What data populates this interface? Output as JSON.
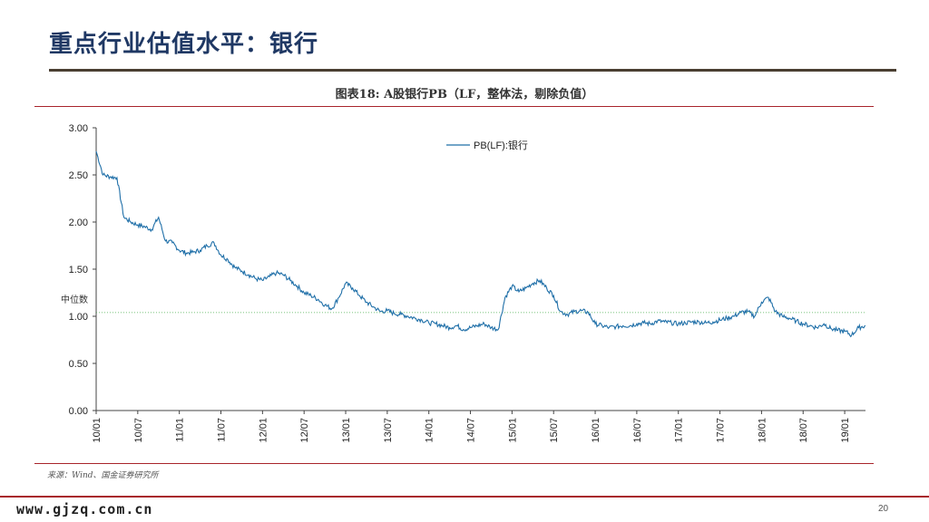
{
  "slide": {
    "title": "重点行业估值水平：银行",
    "caption": "图表18:    A股银行PB（LF，整体法，剔除负值）",
    "source": "来源：Wind、国金证券研究所",
    "footer_site": "www.gjzq.com.cn",
    "page_number": "20"
  },
  "colors": {
    "series": "#1f6fa8",
    "reference": "#4caf50",
    "rule": "#a8242b"
  },
  "chart_data": {
    "type": "line",
    "title": "",
    "xlabel": "",
    "ylabel": "",
    "ylim": [
      0,
      3.0
    ],
    "yticks": [
      "3.00",
      "2.50",
      "2.00",
      "1.50",
      "1.00",
      "0.50",
      "0.00"
    ],
    "ytick_values": [
      3.0,
      2.5,
      2.0,
      1.5,
      1.0,
      0.5,
      0.0
    ],
    "x_tick_labels": [
      "10/01",
      "10/07",
      "11/01",
      "11/07",
      "12/01",
      "12/07",
      "13/01",
      "13/07",
      "14/01",
      "14/07",
      "15/01",
      "15/07",
      "16/01",
      "16/07",
      "17/01",
      "17/07",
      "18/01",
      "18/07",
      "19/01"
    ],
    "x_range": [
      "2010-01",
      "2019-04"
    ],
    "grid": false,
    "legend_position": "top-center",
    "reference_line": {
      "label": "中位数",
      "value": 1.04
    },
    "series": [
      {
        "name": "PB(LF):银行",
        "x": [
          "2010-01",
          "2010-02",
          "2010-03",
          "2010-04",
          "2010-05",
          "2010-06",
          "2010-07",
          "2010-08",
          "2010-09",
          "2010-10",
          "2010-11",
          "2010-12",
          "2011-01",
          "2011-02",
          "2011-03",
          "2011-04",
          "2011-05",
          "2011-06",
          "2011-07",
          "2011-08",
          "2011-09",
          "2011-10",
          "2011-11",
          "2011-12",
          "2012-01",
          "2012-02",
          "2012-03",
          "2012-04",
          "2012-05",
          "2012-06",
          "2012-07",
          "2012-08",
          "2012-09",
          "2012-10",
          "2012-11",
          "2012-12",
          "2013-01",
          "2013-02",
          "2013-03",
          "2013-04",
          "2013-05",
          "2013-06",
          "2013-07",
          "2013-08",
          "2013-09",
          "2013-10",
          "2013-11",
          "2013-12",
          "2014-01",
          "2014-02",
          "2014-03",
          "2014-04",
          "2014-05",
          "2014-06",
          "2014-07",
          "2014-08",
          "2014-09",
          "2014-10",
          "2014-11",
          "2014-12",
          "2015-01",
          "2015-02",
          "2015-03",
          "2015-04",
          "2015-05",
          "2015-06",
          "2015-07",
          "2015-08",
          "2015-09",
          "2015-10",
          "2015-11",
          "2015-12",
          "2016-01",
          "2016-02",
          "2016-03",
          "2016-04",
          "2016-05",
          "2016-06",
          "2016-07",
          "2016-08",
          "2016-09",
          "2016-10",
          "2016-11",
          "2016-12",
          "2017-01",
          "2017-02",
          "2017-03",
          "2017-04",
          "2017-05",
          "2017-06",
          "2017-07",
          "2017-08",
          "2017-09",
          "2017-10",
          "2017-11",
          "2017-12",
          "2018-01",
          "2018-02",
          "2018-03",
          "2018-04",
          "2018-05",
          "2018-06",
          "2018-07",
          "2018-08",
          "2018-09",
          "2018-10",
          "2018-11",
          "2018-12",
          "2019-01",
          "2019-02",
          "2019-03",
          "2019-04"
        ],
        "values": [
          2.75,
          2.5,
          2.48,
          2.47,
          2.05,
          2.0,
          1.97,
          1.95,
          1.92,
          2.05,
          1.8,
          1.78,
          1.7,
          1.67,
          1.68,
          1.7,
          1.75,
          1.78,
          1.65,
          1.6,
          1.52,
          1.48,
          1.44,
          1.4,
          1.38,
          1.42,
          1.46,
          1.44,
          1.38,
          1.32,
          1.25,
          1.22,
          1.18,
          1.12,
          1.08,
          1.2,
          1.35,
          1.3,
          1.22,
          1.15,
          1.1,
          1.05,
          1.06,
          1.03,
          1.02,
          1.0,
          0.98,
          0.96,
          0.93,
          0.92,
          0.9,
          0.88,
          0.9,
          0.86,
          0.88,
          0.9,
          0.92,
          0.88,
          0.86,
          1.2,
          1.32,
          1.26,
          1.3,
          1.35,
          1.38,
          1.3,
          1.22,
          1.05,
          1.02,
          1.05,
          1.06,
          1.04,
          0.92,
          0.9,
          0.88,
          0.89,
          0.9,
          0.9,
          0.92,
          0.93,
          0.92,
          0.95,
          0.94,
          0.93,
          0.92,
          0.93,
          0.94,
          0.94,
          0.93,
          0.94,
          0.96,
          0.98,
          1.0,
          1.04,
          1.05,
          1.0,
          1.15,
          1.2,
          1.05,
          1.0,
          0.98,
          0.95,
          0.92,
          0.9,
          0.88,
          0.92,
          0.87,
          0.85,
          0.84,
          0.8,
          0.88,
          0.9
        ]
      }
    ]
  }
}
